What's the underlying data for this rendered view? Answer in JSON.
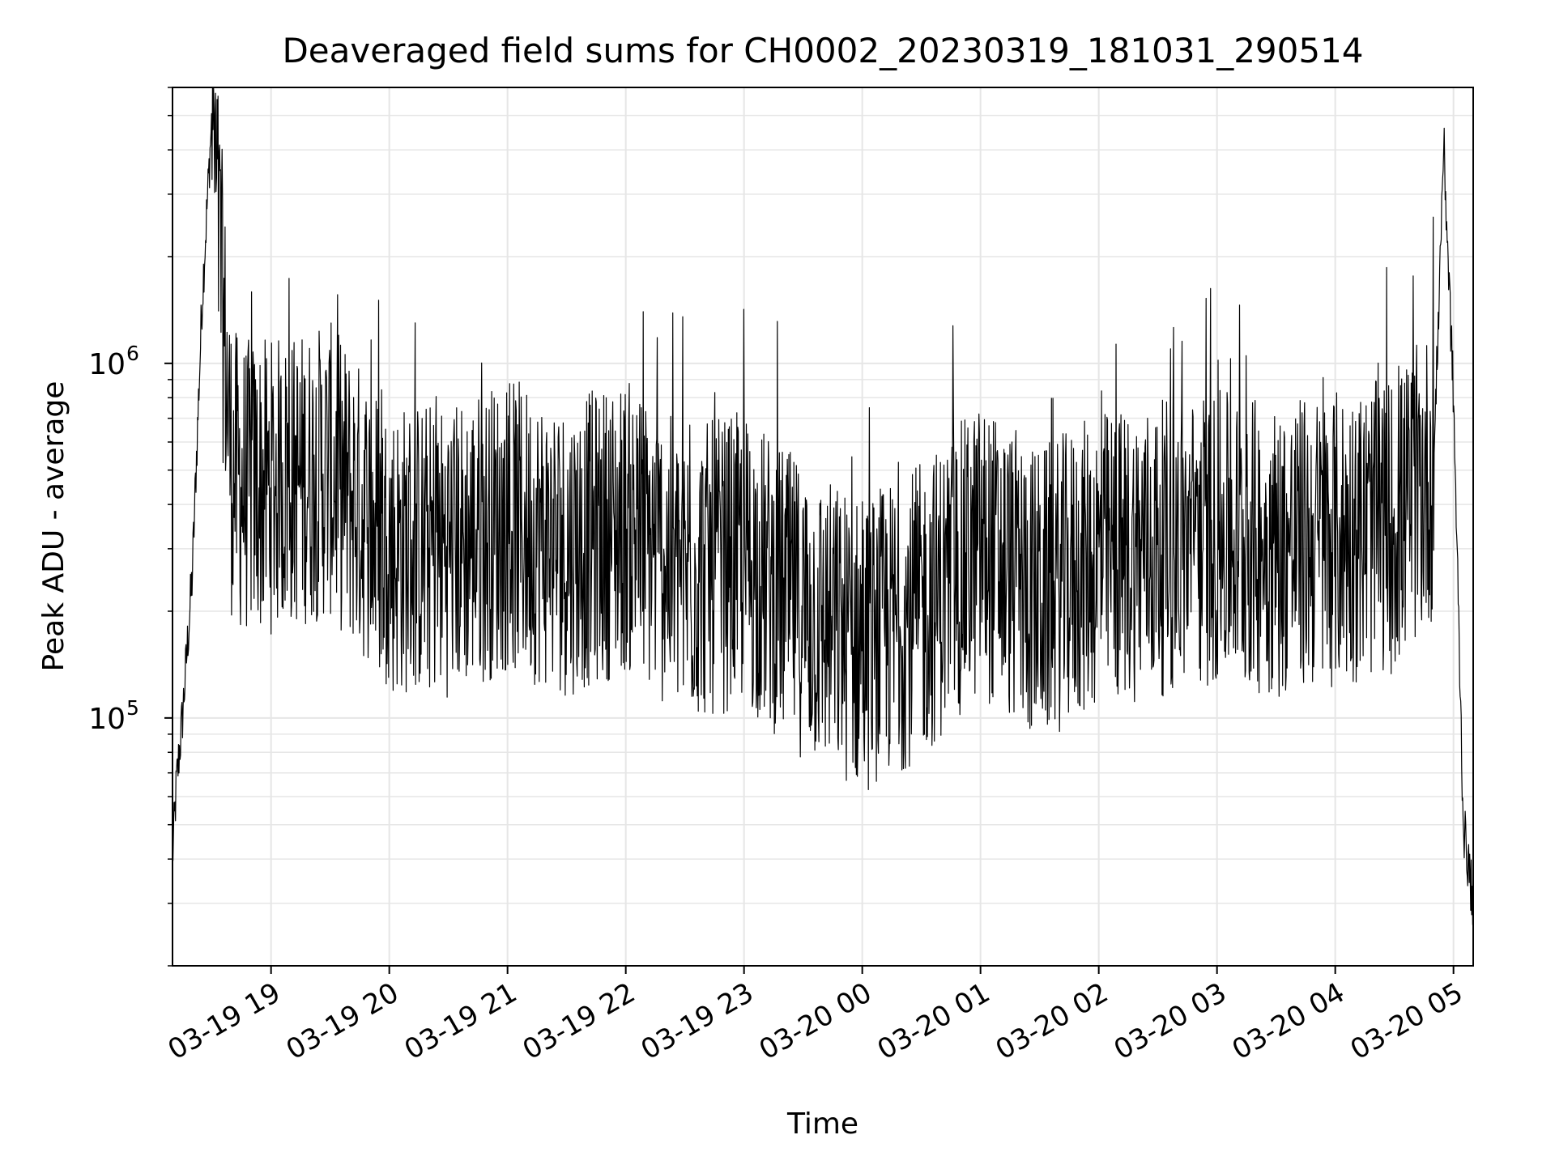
{
  "chart_data": {
    "type": "line",
    "title": "Deaveraged field sums for CH0002_20230319_181031_290514",
    "xlabel": "Time",
    "ylabel": "Peak ADU - average",
    "yscale": "log",
    "ylim": [
      20000,
      6000000
    ],
    "xlim": [
      "2023-03-19 18:10",
      "2023-03-20 05:10"
    ],
    "x_tick_labels": [
      "03-19 19",
      "03-19 20",
      "03-19 21",
      "03-19 22",
      "03-19 23",
      "03-20 00",
      "03-20 01",
      "03-20 02",
      "03-20 03",
      "03-20 04",
      "03-20 05"
    ],
    "y_tick_labels": [
      {
        "base": "10",
        "exp": "5",
        "value": 100000
      },
      {
        "base": "10",
        "exp": "6",
        "value": 1000000
      }
    ],
    "grid": true,
    "legend": "none",
    "line_color": "#000000",
    "series": [
      {
        "x": [
          "2023-03-19 18:10",
          "2023-03-19 18:12",
          "2023-03-19 18:15",
          "2023-03-19 18:20",
          "2023-03-19 18:25",
          "2023-03-19 18:30",
          "2023-03-19 18:40",
          "2023-03-19 18:45",
          "2023-03-19 19:00",
          "2023-03-19 19:30",
          "2023-03-19 20:00",
          "2023-03-19 20:30",
          "2023-03-19 21:00",
          "2023-03-19 21:30",
          "2023-03-19 22:00",
          "2023-03-19 22:30",
          "2023-03-19 23:00",
          "2023-03-19 23:30",
          "2023-03-20 00:00",
          "2023-03-20 00:30",
          "2023-03-20 01:00",
          "2023-03-20 01:30",
          "2023-03-20 02:00",
          "2023-03-20 02:30",
          "2023-03-20 03:00",
          "2023-03-20 03:30",
          "2023-03-20 04:00",
          "2023-03-20 04:30",
          "2023-03-20 04:50",
          "2023-03-20 04:55",
          "2023-03-20 05:00",
          "2023-03-20 05:05",
          "2023-03-20 05:10"
        ],
        "values": [
          40000,
          65000,
          100000,
          250000,
          1500000,
          5000000,
          500000,
          450000,
          450000,
          500000,
          300000,
          300000,
          350000,
          300000,
          350000,
          250000,
          280000,
          200000,
          160000,
          200000,
          300000,
          220000,
          280000,
          300000,
          320000,
          300000,
          320000,
          350000,
          500000,
          4200000,
          800000,
          50000,
          30000
        ]
      }
    ]
  }
}
